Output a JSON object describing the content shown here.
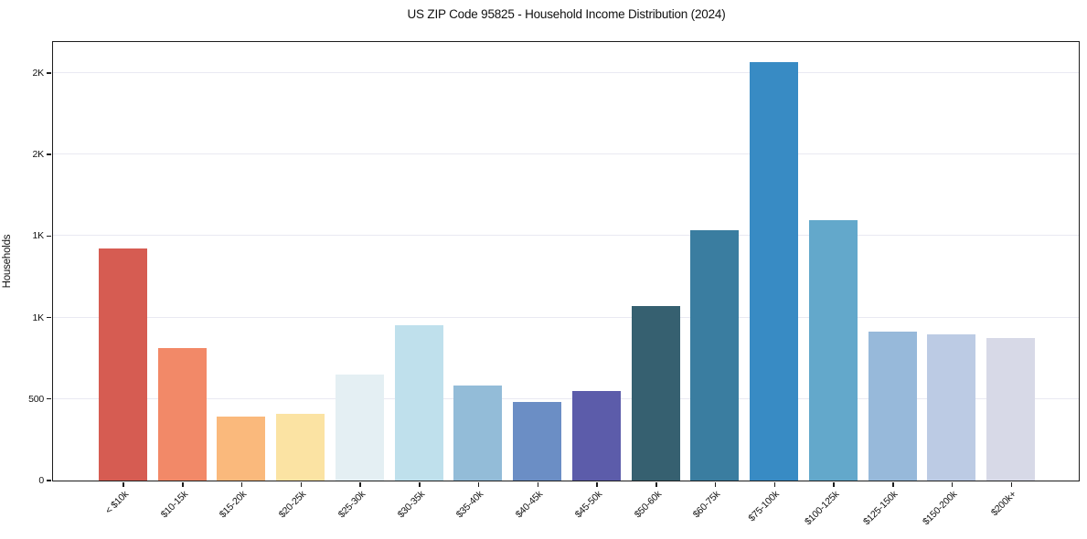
{
  "figure": {
    "background": "#ffffff",
    "axis_color": "#1c1c1c",
    "gridline_color": "#e9e9f2",
    "text_color": "#111111"
  },
  "chart_data": {
    "type": "bar",
    "title": "US ZIP Code 95825 - Household Income Distribution (2024)",
    "xlabel": "",
    "ylabel": "Households",
    "legend_position": "none",
    "grid": "horizontal",
    "ylim": [
      0,
      2690
    ],
    "yticks": {
      "values": [
        0,
        500,
        1000,
        1500,
        2000,
        2500
      ],
      "labels": [
        "0",
        "500",
        "1K",
        "1K",
        "2K",
        "2K"
      ]
    },
    "categories": [
      "< $10k",
      "$10-15k",
      "$15-20k",
      "$20-25k",
      "$25-30k",
      "$30-35k",
      "$35-40k",
      "$40-45k",
      "$45-50k",
      "$50-60k",
      "$60-75k",
      "$75-100k",
      "$100-125k",
      "$125-150k",
      "$150-200k",
      "$200k+"
    ],
    "values": [
      1425,
      810,
      395,
      410,
      650,
      955,
      585,
      480,
      550,
      1070,
      1535,
      2565,
      1595,
      915,
      895,
      875
    ],
    "bar_colors": [
      "#d65c52",
      "#f28968",
      "#fab97c",
      "#fbe3a3",
      "#e4eff3",
      "#bfe0ec",
      "#93bcd8",
      "#6b8ec5",
      "#5c5caa",
      "#366070",
      "#3a7da0",
      "#388bc4",
      "#63a8cb",
      "#97b9da",
      "#bccbe4",
      "#d7d9e7"
    ]
  }
}
